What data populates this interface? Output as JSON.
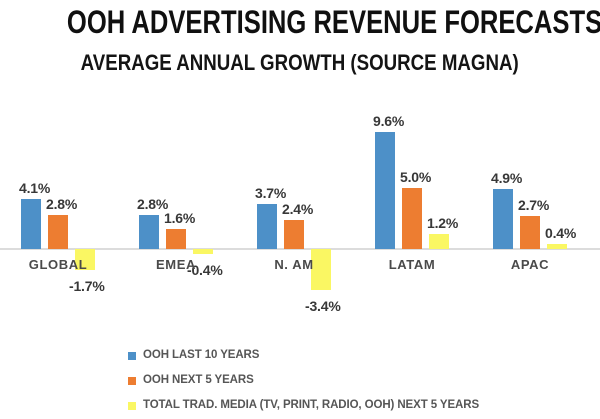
{
  "header": {
    "title": "OOH ADVERTISING REVENUE FORECASTS",
    "subtitle": "AVERAGE ANNUAL GROWTH (SOURCE MAGNA)"
  },
  "chart_data": {
    "type": "bar",
    "title": "OOH ADVERTISING REVENUE FORECASTS",
    "subtitle": "AVERAGE ANNUAL GROWTH (SOURCE MAGNA)",
    "categories": [
      "GLOBAL",
      "EMEA",
      "N. AM",
      "LATAM",
      "APAC"
    ],
    "series": [
      {
        "name": "OOH LAST 10 YEARS",
        "color": "#4D90C8",
        "values": [
          4.1,
          2.8,
          3.7,
          9.6,
          4.9
        ]
      },
      {
        "name": "OOH NEXT 5 YEARS",
        "color": "#ED7D31",
        "values": [
          2.8,
          1.6,
          2.4,
          5.0,
          2.7
        ]
      },
      {
        "name": "TOTAL TRAD. MEDIA (TV, PRINT, RADIO, OOH) NEXT 5 YEARS",
        "color": "#FAF763",
        "values": [
          -1.7,
          -0.4,
          -3.4,
          1.2,
          0.4
        ]
      }
    ],
    "value_suffix": "%",
    "value_decimals": 1,
    "ylim": [
      -3.4,
      9.6
    ],
    "baseline": 0,
    "grid": false,
    "data_labels": true,
    "legend_position": "bottom-left",
    "axis_line_color": "#dcdcdc",
    "value_label_color": "#383838",
    "category_label_color": "#4a4a4a"
  }
}
